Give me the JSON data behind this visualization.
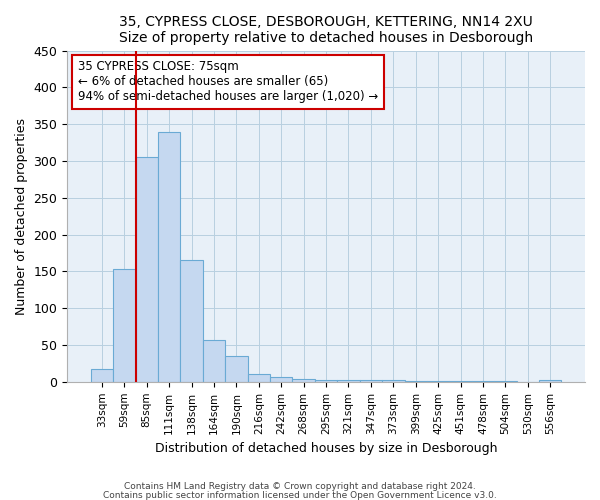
{
  "title1": "35, CYPRESS CLOSE, DESBOROUGH, KETTERING, NN14 2XU",
  "title2": "Size of property relative to detached houses in Desborough",
  "xlabel": "Distribution of detached houses by size in Desborough",
  "ylabel": "Number of detached properties",
  "bin_labels": [
    "33sqm",
    "59sqm",
    "85sqm",
    "111sqm",
    "138sqm",
    "164sqm",
    "190sqm",
    "216sqm",
    "242sqm",
    "268sqm",
    "295sqm",
    "321sqm",
    "347sqm",
    "373sqm",
    "399sqm",
    "425sqm",
    "451sqm",
    "478sqm",
    "504sqm",
    "530sqm",
    "556sqm"
  ],
  "bar_values": [
    18,
    153,
    305,
    340,
    165,
    57,
    35,
    10,
    6,
    4,
    3,
    2,
    2,
    2,
    1,
    1,
    1,
    1,
    1,
    0,
    3
  ],
  "bar_color": "#c5d8f0",
  "bar_edge_color": "#6aaad4",
  "vline_color": "#cc0000",
  "annotation_title": "35 CYPRESS CLOSE: 75sqm",
  "annotation_line1": "← 6% of detached houses are smaller (65)",
  "annotation_line2": "94% of semi-detached houses are larger (1,020) →",
  "annotation_box_color": "#ffffff",
  "annotation_box_edge": "#cc0000",
  "plot_bg_color": "#e8f0f8",
  "ylim": [
    0,
    450
  ],
  "yticks": [
    0,
    50,
    100,
    150,
    200,
    250,
    300,
    350,
    400,
    450
  ],
  "footnote1": "Contains HM Land Registry data © Crown copyright and database right 2024.",
  "footnote2": "Contains public sector information licensed under the Open Government Licence v3.0."
}
